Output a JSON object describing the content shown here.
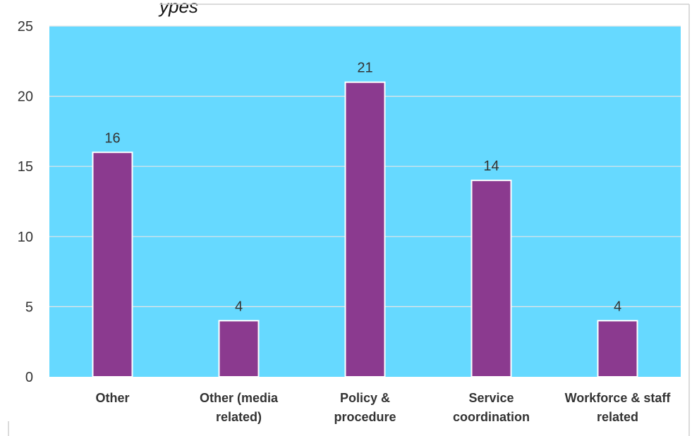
{
  "chart_data": {
    "type": "bar",
    "title": "",
    "xlabel": "",
    "ylabel": "",
    "categories": [
      "Other",
      "Other (media related)",
      "Policy & procedure",
      "Service coordination",
      "Workforce & staff related"
    ],
    "category_lines": [
      [
        "Other"
      ],
      [
        "Other (media",
        "related)"
      ],
      [
        "Policy &",
        "procedure"
      ],
      [
        "Service",
        "coordination"
      ],
      [
        "Workforce & staff",
        "related"
      ]
    ],
    "values": [
      16,
      4,
      21,
      14,
      4
    ],
    "data_labels": [
      "16",
      "4",
      "21",
      "14",
      "4"
    ],
    "ylim": [
      0,
      25
    ],
    "yticks": [
      0,
      5,
      10,
      15,
      20,
      25
    ],
    "ytick_labels": [
      "0",
      "5",
      "10",
      "15",
      "20",
      "25"
    ],
    "grid": true,
    "legend": "none",
    "colors": {
      "plot_background": "#66d9ff",
      "bar": "#8b3a8f",
      "bar_edge": "#ffffff",
      "gridline": "#e6e6e6",
      "frame": "#cfcfcf"
    }
  },
  "header_fragment": "ypes"
}
